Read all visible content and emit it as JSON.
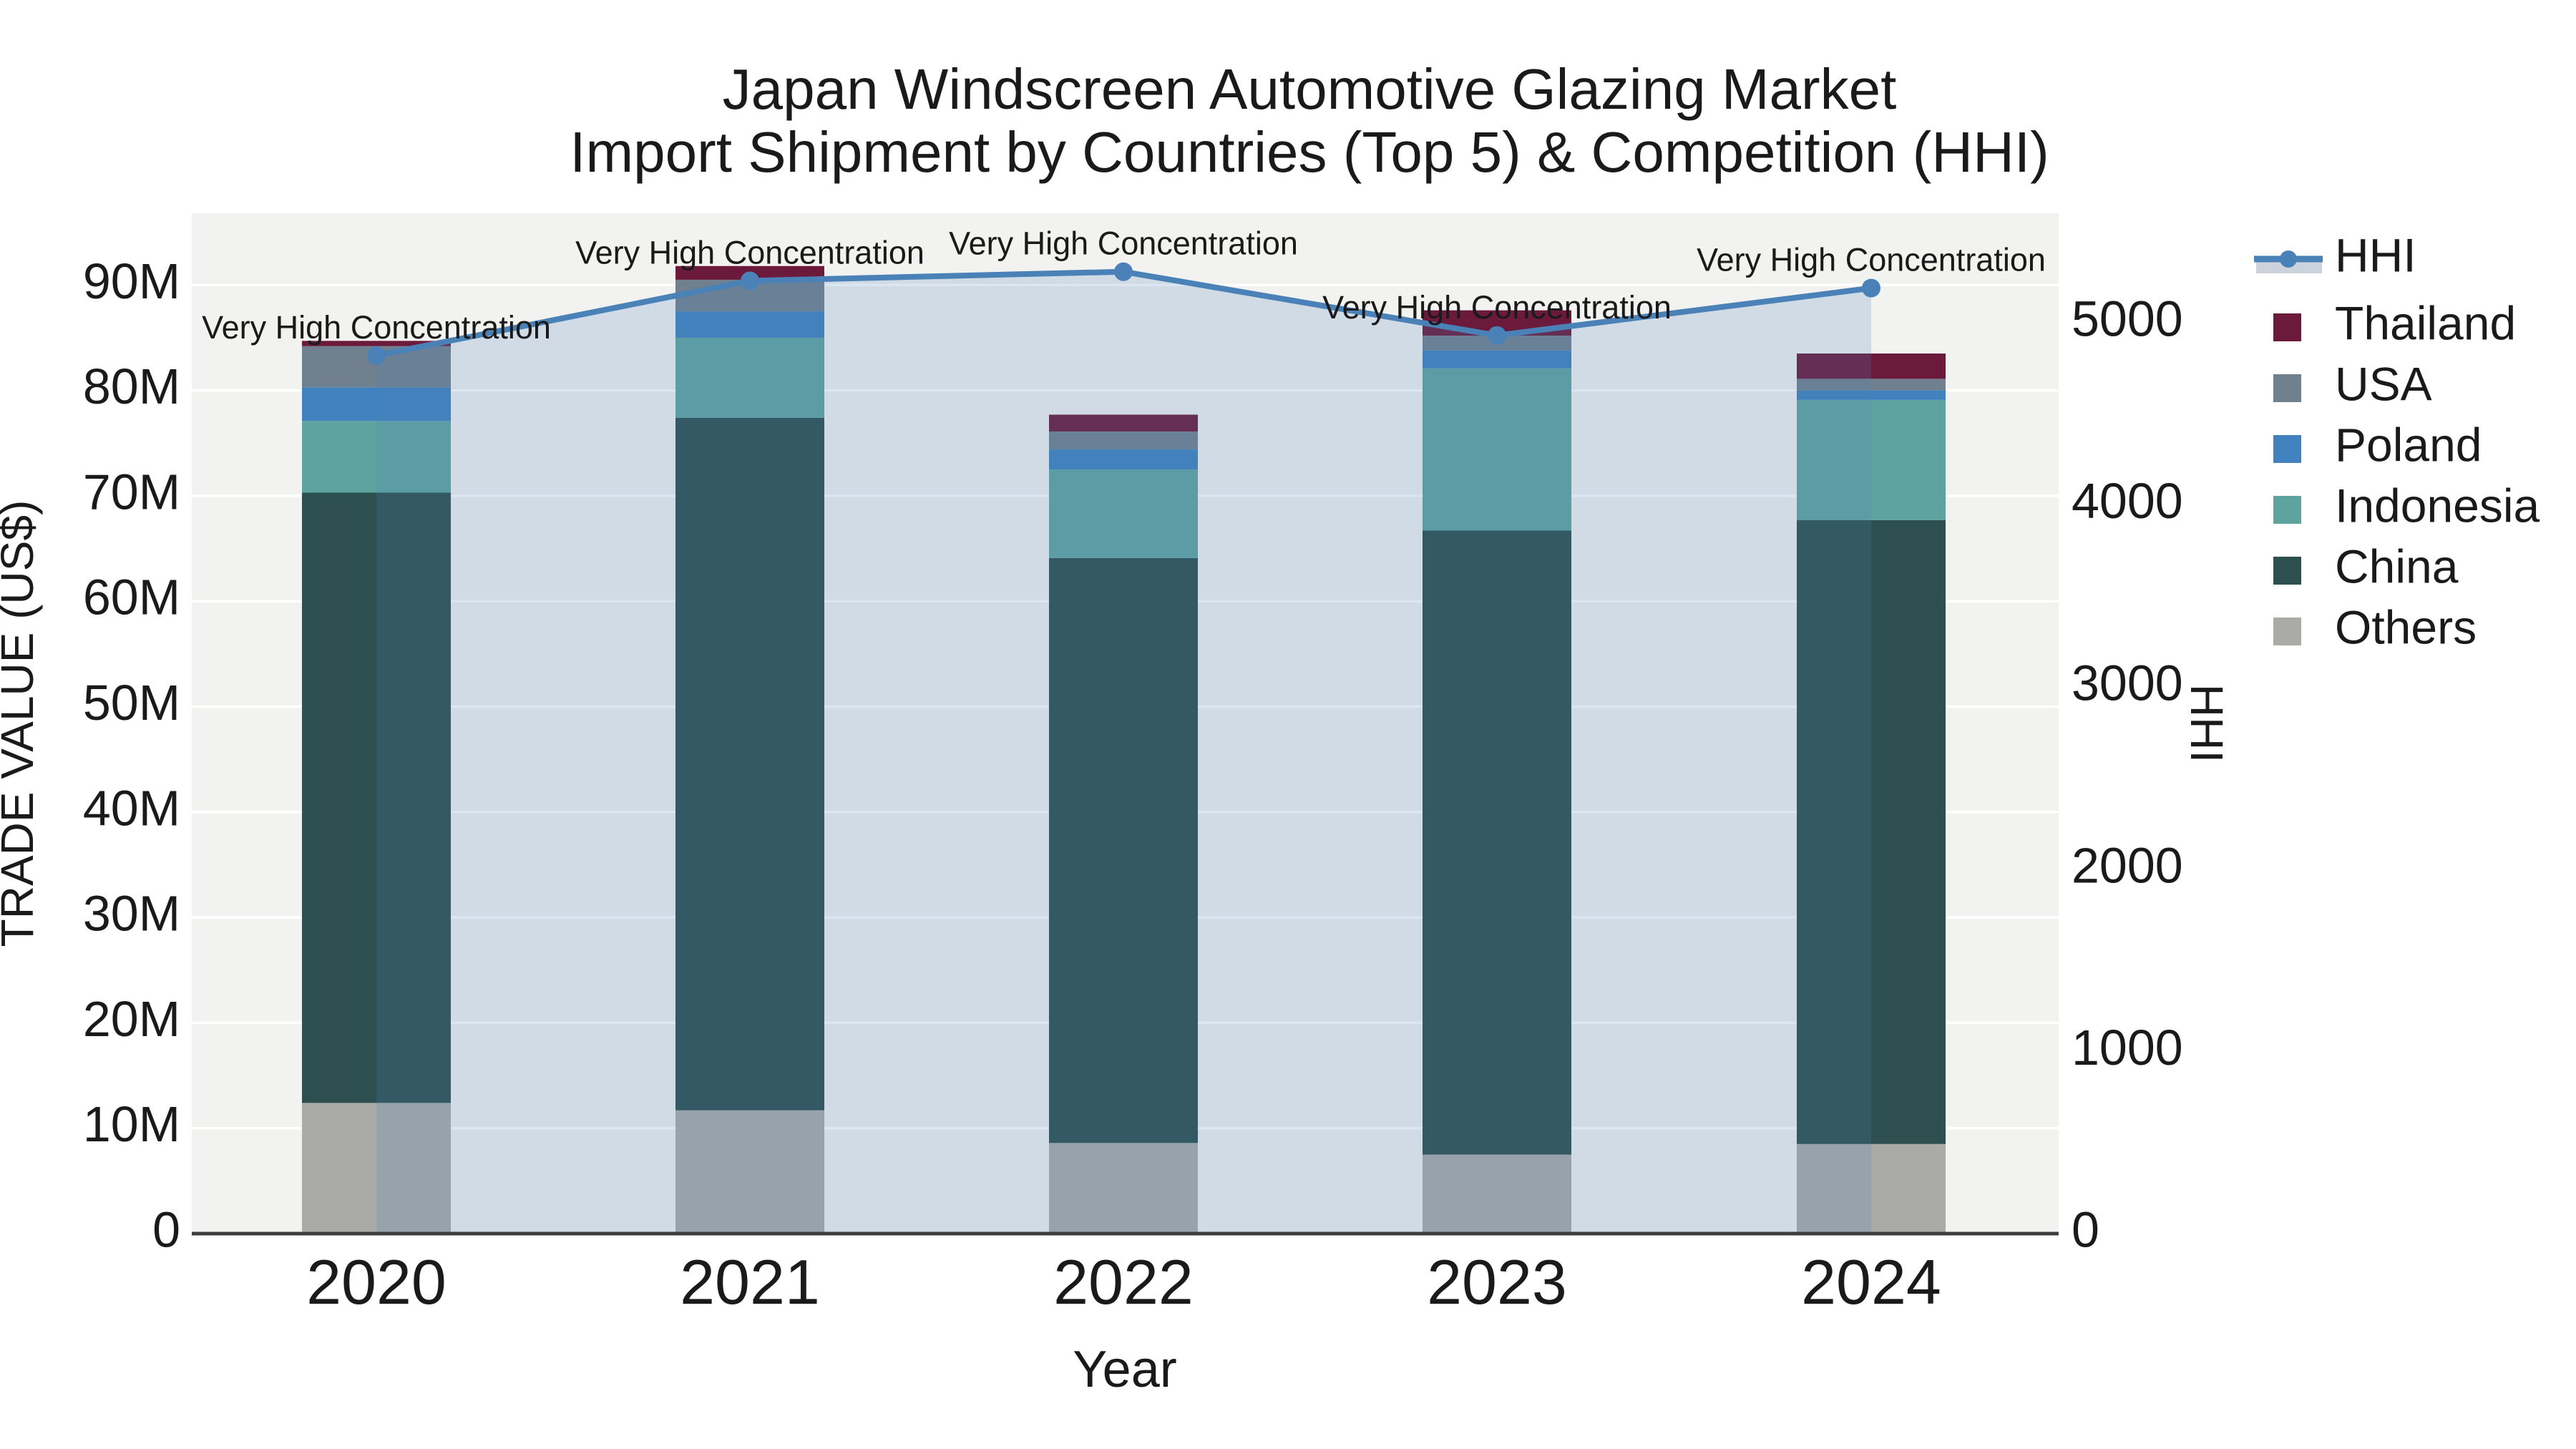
{
  "title": {
    "line1": "Japan Windscreen Automotive Glazing Market",
    "line2": "Import Shipment by Countries (Top 5) & Competition (HHI)"
  },
  "axes": {
    "y_left": {
      "title": "TRADE VALUE (US$)",
      "tick_labels": [
        "0",
        "10M",
        "20M",
        "30M",
        "40M",
        "50M",
        "60M",
        "70M",
        "80M",
        "90M"
      ],
      "tick_values_millions": [
        0,
        10,
        20,
        30,
        40,
        50,
        60,
        70,
        80,
        90
      ]
    },
    "y_right": {
      "title": "HHI",
      "tick_labels": [
        "0",
        "1000",
        "2000",
        "3000",
        "4000",
        "5000"
      ],
      "tick_values": [
        0,
        1000,
        2000,
        3000,
        4000,
        5000
      ]
    },
    "x": {
      "title": "Year"
    }
  },
  "legend": {
    "items": [
      {
        "label": "HHI",
        "type": "line",
        "color": "#4a82b8",
        "band_color": "#ccd3dc"
      },
      {
        "label": "Thailand",
        "type": "swatch",
        "color": "#6b1a3c"
      },
      {
        "label": "USA",
        "type": "swatch",
        "color": "#71808f"
      },
      {
        "label": "Poland",
        "type": "swatch",
        "color": "#4181bd"
      },
      {
        "label": "Indonesia",
        "type": "swatch",
        "color": "#5fa3a0"
      },
      {
        "label": "China",
        "type": "swatch",
        "color": "#2e4f4f"
      },
      {
        "label": "Others",
        "type": "swatch",
        "color": "#aaaaa7"
      }
    ]
  },
  "annotation_text": "Very High Concentration",
  "colors": {
    "plot_bg": "#f2f2f1",
    "gridline": "#ffffff",
    "axis_line": "#3d3d3d",
    "hhi_line": "#4a82b8",
    "hhi_fill": "rgba(74,130,184,0.2)",
    "text": "#1a1a1a"
  },
  "chart_data": {
    "type": "bar",
    "subtype": "stacked-bars-with-line-overlay",
    "title": "Japan Windscreen Automotive Glazing Market — Import Shipment by Countries (Top 5) & Competition (HHI)",
    "xlabel": "Year",
    "ylabel_left": "TRADE VALUE (US$)",
    "ylabel_right": "HHI",
    "unit": "million US$",
    "categories": [
      "2020",
      "2021",
      "2022",
      "2023",
      "2024"
    ],
    "stack_order_bottom_to_top": [
      "Others",
      "China",
      "Indonesia",
      "Poland",
      "USA",
      "Thailand"
    ],
    "series": [
      {
        "name": "Others",
        "color": "#aaaaa7",
        "values": [
          12.4,
          11.7,
          8.6,
          7.5,
          8.5
        ]
      },
      {
        "name": "China",
        "color": "#2e4f4f",
        "values": [
          57.9,
          65.7,
          55.5,
          59.2,
          59.2
        ]
      },
      {
        "name": "Indonesia",
        "color": "#5fa3a0",
        "values": [
          6.8,
          7.6,
          8.4,
          15.4,
          11.4
        ]
      },
      {
        "name": "Poland",
        "color": "#4181bd",
        "values": [
          3.2,
          2.5,
          1.9,
          1.7,
          0.9
        ]
      },
      {
        "name": "USA",
        "color": "#71808f",
        "values": [
          3.9,
          3.0,
          1.7,
          1.4,
          1.1
        ]
      },
      {
        "name": "Thailand",
        "color": "#6b1a3c",
        "values": [
          0.5,
          1.3,
          1.6,
          2.4,
          2.4
        ]
      }
    ],
    "stack_totals_millions": [
      84.7,
      91.8,
      77.7,
      87.6,
      83.5
    ],
    "line_series": {
      "name": "HHI",
      "axis": "right",
      "color": "#4a82b8",
      "fill": "tozeroy",
      "fill_color": "rgba(74,130,184,0.2)",
      "values": [
        4820,
        5230,
        5280,
        4930,
        5190
      ],
      "point_labels": [
        "Very High Concentration",
        "Very High Concentration",
        "Very High Concentration",
        "Very High Concentration",
        "Very High Concentration"
      ]
    },
    "ylim_left_millions": [
      0,
      96.8
    ],
    "ylim_right": [
      0,
      5600
    ],
    "grid": "horizontal-only",
    "legend_position": "right"
  }
}
